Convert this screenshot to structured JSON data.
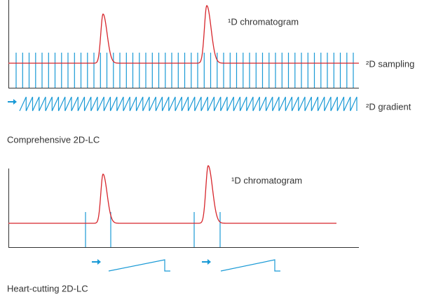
{
  "comprehensive": {
    "chromatogram_label": "¹D chromatogram",
    "sampling_label": "²D sampling",
    "gradient_label": "²D gradient",
    "caption": "Comprehensive 2D-LC"
  },
  "heart_cutting": {
    "chromatogram_label": "¹D chromatogram",
    "caption": "Heart-cutting 2D-LC"
  }
}
